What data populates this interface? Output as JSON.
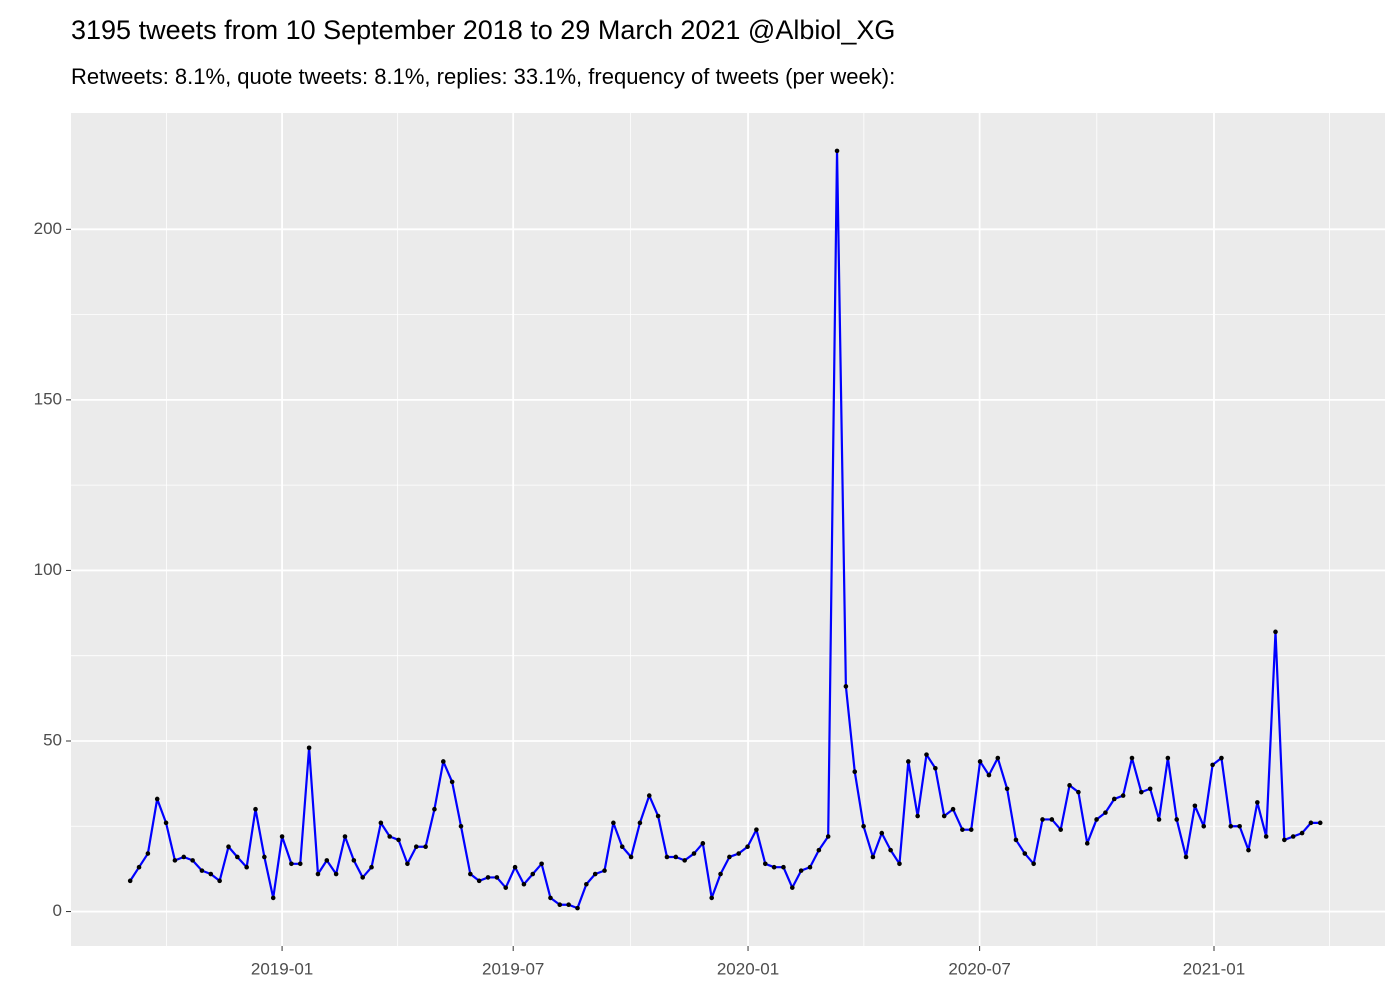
{
  "chart_data": {
    "type": "line",
    "title": "3195 tweets from 10 September 2018 to 29 March 2021 @Albiol_XG",
    "subtitle": "Retweets: 8.1%, quote tweets: 8.1%, replies: 33.1%, frequency of tweets (per week):",
    "x": [
      2018.674,
      2018.693,
      2018.712,
      2018.732,
      2018.751,
      2018.77,
      2018.789,
      2018.808,
      2018.828,
      2018.847,
      2018.866,
      2018.885,
      2018.904,
      2018.924,
      2018.943,
      2018.962,
      2018.981,
      2019.0,
      2019.02,
      2019.039,
      2019.058,
      2019.077,
      2019.096,
      2019.116,
      2019.135,
      2019.154,
      2019.173,
      2019.192,
      2019.212,
      2019.231,
      2019.25,
      2019.269,
      2019.288,
      2019.308,
      2019.327,
      2019.346,
      2019.365,
      2019.384,
      2019.404,
      2019.423,
      2019.442,
      2019.461,
      2019.48,
      2019.5,
      2019.519,
      2019.538,
      2019.557,
      2019.576,
      2019.596,
      2019.615,
      2019.634,
      2019.653,
      2019.672,
      2019.692,
      2019.711,
      2019.73,
      2019.749,
      2019.768,
      2019.788,
      2019.807,
      2019.826,
      2019.845,
      2019.864,
      2019.884,
      2019.903,
      2019.922,
      2019.941,
      2019.96,
      2019.98,
      2019.999,
      2020.018,
      2020.037,
      2020.056,
      2020.076,
      2020.095,
      2020.114,
      2020.133,
      2020.152,
      2020.172,
      2020.191,
      2020.21,
      2020.229,
      2020.248,
      2020.268,
      2020.287,
      2020.306,
      2020.325,
      2020.344,
      2020.364,
      2020.383,
      2020.402,
      2020.421,
      2020.44,
      2020.46,
      2020.479,
      2020.498,
      2020.517,
      2020.536,
      2020.556,
      2020.575,
      2020.594,
      2020.613,
      2020.632,
      2020.652,
      2020.671,
      2020.69,
      2020.709,
      2020.728,
      2020.748,
      2020.767,
      2020.786,
      2020.805,
      2020.824,
      2020.844,
      2020.863,
      2020.882,
      2020.901,
      2020.92,
      2020.94,
      2020.959,
      2020.978,
      2020.997,
      2021.016,
      2021.036,
      2021.055,
      2021.074,
      2021.093,
      2021.112,
      2021.132,
      2021.151,
      2021.17,
      2021.189,
      2021.208,
      2021.228
    ],
    "values": [
      9,
      13,
      17,
      33,
      26,
      15,
      16,
      15,
      12,
      11,
      9,
      19,
      16,
      13,
      30,
      16,
      4,
      22,
      14,
      14,
      48,
      11,
      15,
      11,
      22,
      15,
      10,
      13,
      26,
      22,
      21,
      14,
      19,
      19,
      30,
      44,
      38,
      25,
      11,
      9,
      10,
      10,
      7,
      13,
      8,
      11,
      14,
      4,
      2,
      2,
      1,
      8,
      11,
      12,
      26,
      19,
      16,
      26,
      34,
      28,
      16,
      16,
      15,
      17,
      20,
      4,
      11,
      16,
      17,
      19,
      24,
      14,
      13,
      13,
      7,
      12,
      13,
      18,
      22,
      223,
      66,
      41,
      25,
      16,
      23,
      18,
      14,
      44,
      28,
      46,
      42,
      28,
      30,
      24,
      24,
      44,
      40,
      45,
      36,
      21,
      17,
      14,
      27,
      27,
      24,
      37,
      35,
      20,
      27,
      29,
      33,
      34,
      45,
      35,
      36,
      27,
      45,
      27,
      16,
      31,
      25,
      43,
      45,
      25,
      25,
      18,
      32,
      22,
      82,
      21,
      22,
      23,
      26,
      26
    ],
    "color": "#0000ff",
    "point_color": "#000000",
    "xlim": [
      2018.547,
      2021.367
    ],
    "xticks": [
      {
        "value": 2019.0,
        "label": "2019-01"
      },
      {
        "value": 2019.496,
        "label": "2019-07"
      },
      {
        "value": 2020.0,
        "label": "2020-01"
      },
      {
        "value": 2020.497,
        "label": "2020-07"
      },
      {
        "value": 2021.0,
        "label": "2021-01"
      }
    ],
    "ylim": [
      -10.1,
      234.1
    ],
    "yticks": [
      0,
      50,
      100,
      150,
      200
    ],
    "grid": true
  }
}
